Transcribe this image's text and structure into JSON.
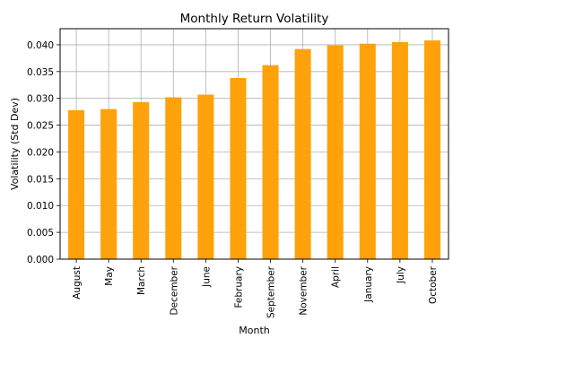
{
  "chart_data": {
    "type": "bar",
    "title": "Monthly Return Volatility",
    "xlabel": "Month",
    "ylabel": "Volatility (Std Dev)",
    "categories": [
      "August",
      "May",
      "March",
      "December",
      "June",
      "February",
      "September",
      "November",
      "April",
      "January",
      "July",
      "October"
    ],
    "values": [
      0.0278,
      0.028,
      0.0293,
      0.0302,
      0.0307,
      0.0338,
      0.0362,
      0.0392,
      0.0399,
      0.0402,
      0.0405,
      0.0408
    ],
    "ylim": [
      0,
      0.043
    ],
    "yticks": [
      "0.000",
      "0.005",
      "0.010",
      "0.015",
      "0.020",
      "0.025",
      "0.030",
      "0.035",
      "0.040"
    ],
    "grid": true,
    "bar_color": "#ffa10a",
    "grid_color": "#b0b0b0"
  }
}
